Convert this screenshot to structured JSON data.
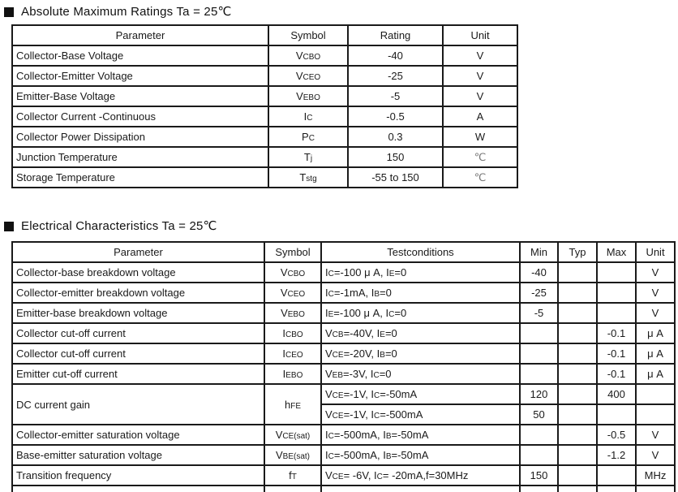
{
  "colors": {
    "text": "#1a1a1a",
    "border": "#000000",
    "celsius_gray": "#777777",
    "background": "#ffffff"
  },
  "section1": {
    "title": "Absolute Maximum Ratings Ta = 25℃",
    "table": {
      "headers": [
        "Parameter",
        "Symbol",
        "Rating",
        "Unit"
      ],
      "rows": [
        {
          "parameter": "Collector-Base Voltage",
          "symbol": [
            {
              "n": "V"
            },
            {
              "s": "CBO"
            }
          ],
          "rating": "-40",
          "unit": "V"
        },
        {
          "parameter": "Collector-Emitter Voltage",
          "symbol": [
            {
              "n": "V"
            },
            {
              "s": "CEO"
            }
          ],
          "rating": "-25",
          "unit": "V"
        },
        {
          "parameter": "Emitter-Base Voltage",
          "symbol": [
            {
              "n": "V"
            },
            {
              "s": "EBO"
            }
          ],
          "rating": "-5",
          "unit": "V"
        },
        {
          "parameter": "Collector Current -Continuous",
          "symbol": [
            {
              "n": "I"
            },
            {
              "s": "C"
            }
          ],
          "rating": "-0.5",
          "unit": "A"
        },
        {
          "parameter": "Collector Power Dissipation",
          "symbol": [
            {
              "n": "P"
            },
            {
              "s": "C"
            }
          ],
          "rating": "0.3",
          "unit": "W"
        },
        {
          "parameter": "Junction Temperature",
          "symbol": [
            {
              "n": "T"
            },
            {
              "s": "j"
            }
          ],
          "rating": "150",
          "unit": "℃"
        },
        {
          "parameter": "Storage Temperature",
          "symbol": [
            {
              "n": "T"
            },
            {
              "s": "stg"
            }
          ],
          "rating": "-55 to 150",
          "unit": "℃"
        }
      ]
    }
  },
  "section2": {
    "title": "Electrical Characteristics Ta = 25℃",
    "table": {
      "headers": [
        "Parameter",
        "Symbol",
        "Testconditions",
        "Min",
        "Typ",
        "Max",
        "Unit"
      ],
      "rows": [
        {
          "parameter": "Collector-base breakdown voltage",
          "symbol": [
            {
              "n": "V"
            },
            {
              "s": "CBO"
            }
          ],
          "conds": [
            {
              "cond": [
                {
                  "n": "I"
                },
                {
                  "s": "C"
                },
                {
                  "n": "=-100 μ A, I"
                },
                {
                  "s": "E"
                },
                {
                  "n": "=0"
                }
              ],
              "min": "-40",
              "typ": "",
              "max": "",
              "unit": "V"
            }
          ]
        },
        {
          "parameter": "Collector-emitter breakdown voltage",
          "symbol": [
            {
              "n": "V"
            },
            {
              "s": "CEO"
            }
          ],
          "conds": [
            {
              "cond": [
                {
                  "n": "I"
                },
                {
                  "s": "C"
                },
                {
                  "n": "=-1mA, I"
                },
                {
                  "s": "B"
                },
                {
                  "n": "=0"
                }
              ],
              "min": "-25",
              "typ": "",
              "max": "",
              "unit": "V"
            }
          ]
        },
        {
          "parameter": "Emitter-base breakdown voltage",
          "symbol": [
            {
              "n": "V"
            },
            {
              "s": "EBO"
            }
          ],
          "conds": [
            {
              "cond": [
                {
                  "n": "I"
                },
                {
                  "s": "E"
                },
                {
                  "n": "=-100 μ A, I"
                },
                {
                  "s": "C"
                },
                {
                  "n": "=0"
                }
              ],
              "min": "-5",
              "typ": "",
              "max": "",
              "unit": "V"
            }
          ]
        },
        {
          "parameter": "Collector cut-off current",
          "symbol": [
            {
              "n": "I"
            },
            {
              "s": "CBO"
            }
          ],
          "conds": [
            {
              "cond": [
                {
                  "n": "V"
                },
                {
                  "s": "CB"
                },
                {
                  "n": "=-40V, I"
                },
                {
                  "s": "E"
                },
                {
                  "n": "=0"
                }
              ],
              "min": "",
              "typ": "",
              "max": "-0.1",
              "unit": "μ A"
            }
          ]
        },
        {
          "parameter": "Collector cut-off current",
          "symbol": [
            {
              "n": "I"
            },
            {
              "s": "CEO"
            }
          ],
          "conds": [
            {
              "cond": [
                {
                  "n": "V"
                },
                {
                  "s": "CE"
                },
                {
                  "n": "=-20V, I"
                },
                {
                  "s": "B"
                },
                {
                  "n": "=0"
                }
              ],
              "min": "",
              "typ": "",
              "max": "-0.1",
              "unit": "μ A"
            }
          ]
        },
        {
          "parameter": "Emitter cut-off current",
          "symbol": [
            {
              "n": "I"
            },
            {
              "s": "EBO"
            }
          ],
          "conds": [
            {
              "cond": [
                {
                  "n": "V"
                },
                {
                  "s": "EB"
                },
                {
                  "n": "=-3V, I"
                },
                {
                  "s": "C"
                },
                {
                  "n": "=0"
                }
              ],
              "min": "",
              "typ": "",
              "max": "-0.1",
              "unit": "μ A"
            }
          ]
        },
        {
          "parameter": "DC current gain",
          "symbol": [
            {
              "n": "h"
            },
            {
              "s": "FE"
            }
          ],
          "conds": [
            {
              "cond": [
                {
                  "n": "V"
                },
                {
                  "s": "CE"
                },
                {
                  "n": "=-1V, I"
                },
                {
                  "s": "C"
                },
                {
                  "n": "=-50mA"
                }
              ],
              "min": "120",
              "typ": "",
              "max": "400",
              "unit": ""
            },
            {
              "cond": [
                {
                  "n": "V"
                },
                {
                  "s": "CE"
                },
                {
                  "n": "=-1V, I"
                },
                {
                  "s": "C"
                },
                {
                  "n": "=-500mA"
                }
              ],
              "min": "50",
              "typ": "",
              "max": "",
              "unit": ""
            }
          ]
        },
        {
          "parameter": "Collector-emitter saturation voltage",
          "symbol": [
            {
              "n": "V"
            },
            {
              "s": "CE(sat)"
            }
          ],
          "conds": [
            {
              "cond": [
                {
                  "n": "I"
                },
                {
                  "s": "C"
                },
                {
                  "n": "=-500mA, I"
                },
                {
                  "s": "B"
                },
                {
                  "n": "=-50mA"
                }
              ],
              "min": "",
              "typ": "",
              "max": "-0.5",
              "unit": "V"
            }
          ]
        },
        {
          "parameter": "Base-emitter saturation voltage",
          "symbol": [
            {
              "n": "V"
            },
            {
              "s": "BE(sat)"
            }
          ],
          "conds": [
            {
              "cond": [
                {
                  "n": "I"
                },
                {
                  "s": "C"
                },
                {
                  "n": "=-500mA, I"
                },
                {
                  "s": "B"
                },
                {
                  "n": "=-50mA"
                }
              ],
              "min": "",
              "typ": "",
              "max": "-1.2",
              "unit": "V"
            }
          ]
        },
        {
          "parameter": "Transition frequency",
          "symbol": [
            {
              "n": "f"
            },
            {
              "s": "T"
            }
          ],
          "conds": [
            {
              "cond": [
                {
                  "n": "V"
                },
                {
                  "s": "CE"
                },
                {
                  "n": "= -6V, I"
                },
                {
                  "s": "C"
                },
                {
                  "n": "= -20mA,f=30MHz"
                }
              ],
              "min": "150",
              "typ": "",
              "max": "",
              "unit": "MHz"
            }
          ]
        }
      ]
    }
  }
}
